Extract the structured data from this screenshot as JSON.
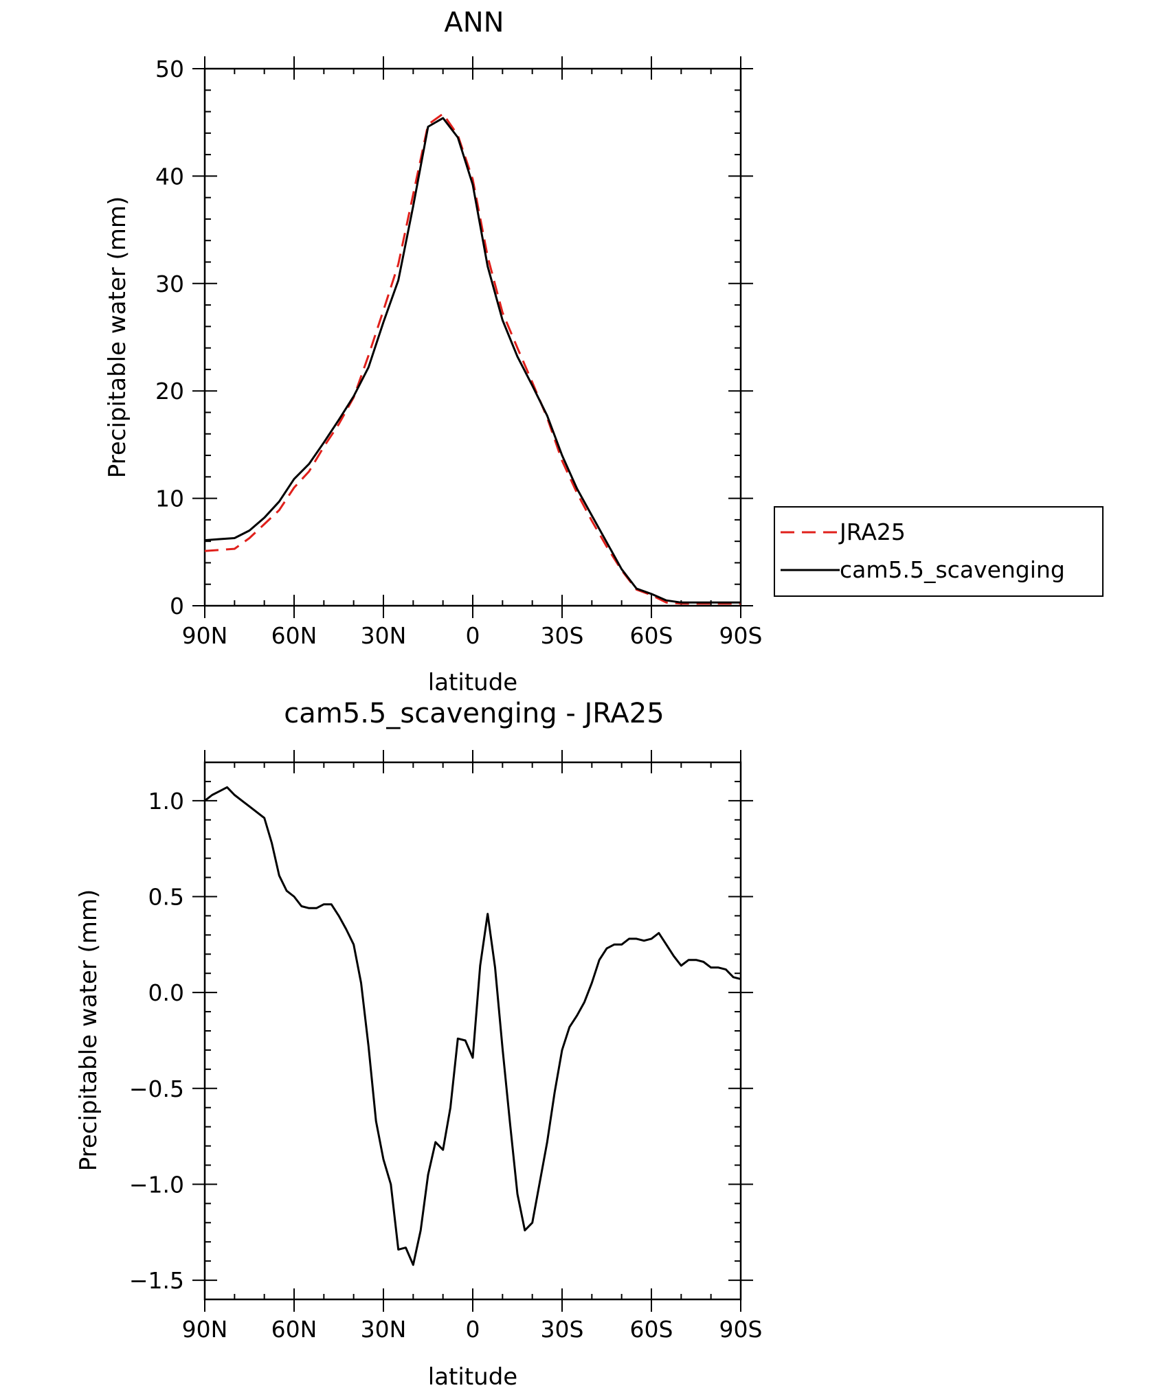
{
  "chart_data": [
    {
      "type": "line",
      "title": "ANN",
      "xlabel": "latitude",
      "ylabel": "Precipitable water (mm)",
      "xlim": [
        90,
        -90
      ],
      "ylim": [
        0,
        50
      ],
      "xticks": [
        {
          "value": 90,
          "label": "90N"
        },
        {
          "value": 60,
          "label": "60N"
        },
        {
          "value": 30,
          "label": "30N"
        },
        {
          "value": 0,
          "label": "0"
        },
        {
          "value": -30,
          "label": "30S"
        },
        {
          "value": -60,
          "label": "60S"
        },
        {
          "value": -90,
          "label": "90S"
        }
      ],
      "yticks": [
        {
          "value": 0,
          "label": "0"
        },
        {
          "value": 10,
          "label": "10"
        },
        {
          "value": 20,
          "label": "20"
        },
        {
          "value": 30,
          "label": "30"
        },
        {
          "value": 40,
          "label": "40"
        },
        {
          "value": 50,
          "label": "50"
        }
      ],
      "legend_position": "right",
      "x": [
        90,
        85,
        80,
        75,
        70,
        65,
        60,
        55,
        50,
        45,
        40,
        35,
        30,
        25,
        20,
        15,
        10,
        5,
        0,
        -5,
        -10,
        -15,
        -20,
        -25,
        -30,
        -35,
        -40,
        -45,
        -50,
        -55,
        -60,
        -65,
        -70,
        -75,
        -80,
        -85,
        -90
      ],
      "series": [
        {
          "name": "JRA25",
          "color": "#e0201b",
          "dash": "dashed",
          "values": [
            5.1,
            5.2,
            5.3,
            6.3,
            7.6,
            8.9,
            11.0,
            12.5,
            14.8,
            16.9,
            19.4,
            23.3,
            27.5,
            31.8,
            38.3,
            44.8,
            45.8,
            43.8,
            39.7,
            32.5,
            27.3,
            24.0,
            20.8,
            17.5,
            13.5,
            10.5,
            7.9,
            5.5,
            3.3,
            1.5,
            1.0,
            0.3,
            0.2,
            0.2,
            0.2,
            0.2,
            0.2
          ]
        },
        {
          "name": "cam5.5_scavenging",
          "color": "#000000",
          "dash": "solid",
          "values": [
            6.1,
            6.2,
            6.3,
            7.0,
            8.2,
            9.7,
            11.8,
            13.2,
            15.2,
            17.3,
            19.5,
            22.2,
            26.4,
            30.3,
            37.2,
            44.6,
            45.4,
            43.6,
            39.2,
            31.6,
            26.6,
            23.2,
            20.5,
            17.7,
            14.0,
            10.9,
            8.4,
            5.9,
            3.4,
            1.6,
            1.1,
            0.5,
            0.3,
            0.3,
            0.3,
            0.3,
            0.3
          ]
        }
      ]
    },
    {
      "type": "line",
      "title": "cam5.5_scavenging - JRA25",
      "xlabel": "latitude",
      "ylabel": "Precipitable water (mm)",
      "xlim": [
        90,
        -90
      ],
      "ylim": [
        -1.6,
        1.2
      ],
      "xticks": [
        {
          "value": 90,
          "label": "90N"
        },
        {
          "value": 60,
          "label": "60N"
        },
        {
          "value": 30,
          "label": "30N"
        },
        {
          "value": 0,
          "label": "0"
        },
        {
          "value": -30,
          "label": "30S"
        },
        {
          "value": -60,
          "label": "60S"
        },
        {
          "value": -90,
          "label": "90S"
        }
      ],
      "yticks": [
        {
          "value": 1.0,
          "label": "1.0"
        },
        {
          "value": 0.5,
          "label": "0.5"
        },
        {
          "value": 0.0,
          "label": "0.0"
        },
        {
          "value": -0.5,
          "label": "−0.5"
        },
        {
          "value": -1.0,
          "label": "−1.0"
        },
        {
          "value": -1.5,
          "label": "−1.5"
        }
      ],
      "x": [
        90,
        87.5,
        85,
        82.5,
        80,
        77.5,
        75,
        72.5,
        70,
        67.5,
        65,
        62.5,
        60,
        57.5,
        55,
        52.5,
        50,
        47.5,
        45,
        42.5,
        40,
        37.5,
        35,
        32.5,
        30,
        27.5,
        25,
        22.5,
        20,
        17.5,
        15,
        12.5,
        10,
        7.5,
        5,
        2.5,
        0,
        -2.5,
        -5,
        -7.5,
        -10,
        -12.5,
        -15,
        -17.5,
        -20,
        -22.5,
        -25,
        -27.5,
        -30,
        -32.5,
        -35,
        -37.5,
        -40,
        -42.5,
        -45,
        -47.5,
        -50,
        -52.5,
        -55,
        -57.5,
        -60,
        -62.5,
        -65,
        -67.5,
        -70,
        -72.5,
        -75,
        -77.5,
        -80,
        -82.5,
        -85,
        -87.5,
        -90
      ],
      "series": [
        {
          "color": "#000000",
          "values": [
            1.0,
            1.03,
            1.05,
            1.07,
            1.03,
            1.0,
            0.97,
            0.94,
            0.91,
            0.78,
            0.61,
            0.53,
            0.5,
            0.45,
            0.44,
            0.44,
            0.46,
            0.46,
            0.4,
            0.33,
            0.25,
            0.05,
            -0.28,
            -0.67,
            -0.87,
            -1.0,
            -1.34,
            -1.33,
            -1.42,
            -1.24,
            -0.95,
            -0.78,
            -0.82,
            -0.6,
            -0.24,
            -0.25,
            -0.34,
            0.14,
            0.41,
            0.13,
            -0.29,
            -0.68,
            -1.05,
            -1.24,
            -1.2,
            -0.99,
            -0.78,
            -0.52,
            -0.3,
            -0.18,
            -0.12,
            -0.05,
            0.05,
            0.17,
            0.23,
            0.25,
            0.25,
            0.28,
            0.28,
            0.27,
            0.28,
            0.31,
            0.25,
            0.19,
            0.14,
            0.17,
            0.17,
            0.16,
            0.13,
            0.13,
            0.12,
            0.08,
            0.07
          ]
        }
      ]
    }
  ]
}
